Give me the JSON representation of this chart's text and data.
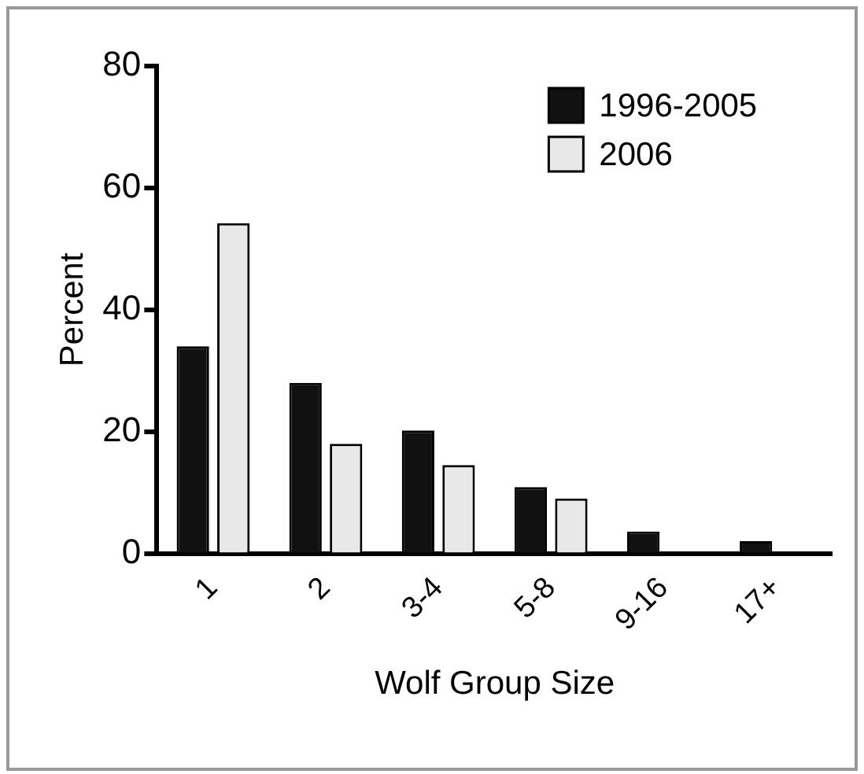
{
  "chart_data": {
    "type": "bar",
    "xlabel": "Wolf Group Size",
    "ylabel": "Percent",
    "categories": [
      "1",
      "2",
      "3-4",
      "5-8",
      "9-16",
      "17+"
    ],
    "series": [
      {
        "name": "1996-2005",
        "color": "#111111",
        "values": [
          34,
          28,
          20.2,
          10.9,
          3.6,
          2
        ]
      },
      {
        "name": "2006",
        "color": "#e8e8e8",
        "values": [
          54.2,
          18,
          14.5,
          9,
          0,
          0
        ]
      }
    ],
    "ylim": [
      0,
      80
    ],
    "yticks": [
      0,
      20,
      40,
      60,
      80
    ],
    "grid": false,
    "legend": "top right"
  }
}
